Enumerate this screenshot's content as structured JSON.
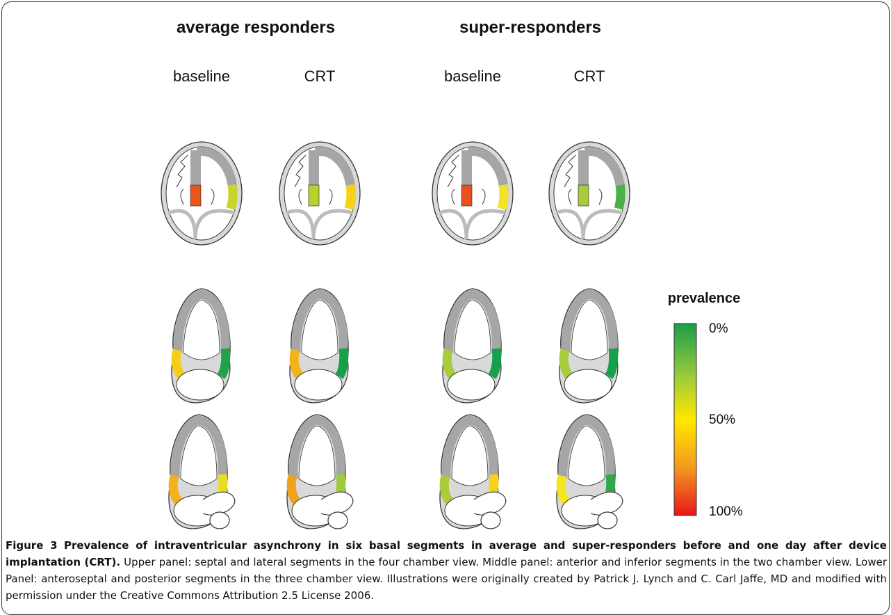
{
  "header": {
    "groups": [
      "average responders",
      "super-responders"
    ],
    "columns": [
      "baseline",
      "CRT",
      "baseline",
      "CRT"
    ]
  },
  "legend": {
    "title": "prevalence",
    "labels": [
      "0%",
      "50%",
      "100%"
    ]
  },
  "caption": {
    "label": "Figure 3",
    "title": "Prevalence of intraventricular asynchrony in six basal segments in average and super-responders before and one day after device implantation (CRT).",
    "text": "Upper panel: septal and lateral segments in the four chamber view. Middle panel: anterior and inferior segments in the two chamber view. Lower Panel: anteroseptal and posterior segments in the three chamber view. Illustrations were originally created by Patrick J. Lynch and C. Carl Jaffe, MD and modified with permission under the Creative Commons Attribution 2.5 License 2006."
  }
}
